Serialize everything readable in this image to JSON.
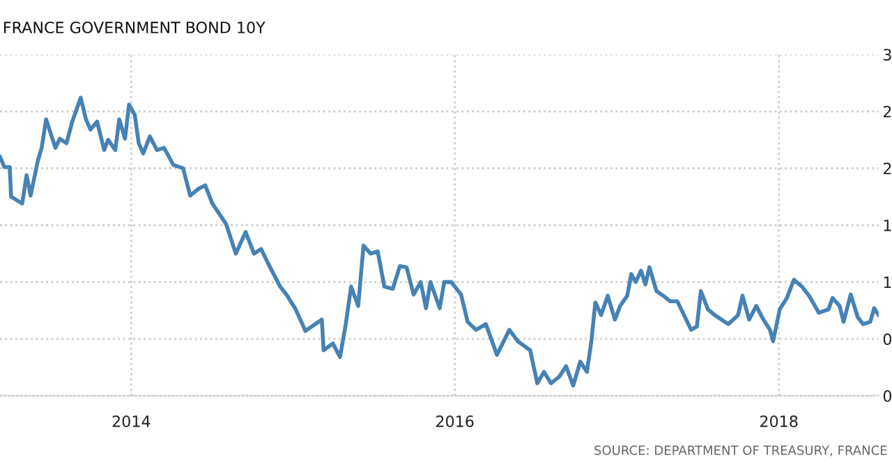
{
  "chart_data": {
    "type": "line",
    "title": "FRANCE GOVERNMENT BOND 10Y",
    "annotations": [
      "SOURCE: DEPARTMENT OF TREASURY, FRANCE"
    ],
    "x": [
      "2013-03-11",
      "2013-03-21",
      "2013-04-02",
      "2013-04-05",
      "2013-04-30",
      "2013-05-10",
      "2013-05-19",
      "2013-06-04",
      "2013-06-13",
      "2013-06-23",
      "2013-07-14",
      "2013-07-24",
      "2013-08-08",
      "2013-08-21",
      "2013-09-09",
      "2013-09-21",
      "2013-10-01",
      "2013-10-16",
      "2013-11-01",
      "2013-11-10",
      "2013-11-26",
      "2013-12-05",
      "2013-12-18",
      "2013-12-27",
      "2014-01-09",
      "2014-01-18",
      "2014-01-28",
      "2014-02-12",
      "2014-02-28",
      "2014-03-16",
      "2014-04-06",
      "2014-04-28",
      "2014-05-14",
      "2014-06-02",
      "2014-06-17",
      "2014-07-03",
      "2014-08-03",
      "2014-08-25",
      "2014-09-16",
      "2014-10-05",
      "2014-10-21",
      "2014-11-05",
      "2014-12-03",
      "2014-12-19",
      "2015-01-07",
      "2015-01-29",
      "2015-02-20",
      "2015-03-07",
      "2015-03-11",
      "2015-04-01",
      "2015-04-17",
      "2015-04-30",
      "2015-05-12",
      "2015-05-28",
      "2015-06-09",
      "2015-06-25",
      "2015-07-11",
      "2015-07-26",
      "2015-08-14",
      "2015-08-30",
      "2015-09-14",
      "2015-09-30",
      "2015-10-16",
      "2015-10-28",
      "2015-11-07",
      "2015-11-28",
      "2015-12-08",
      "2015-12-24",
      "2016-01-15",
      "2016-01-30",
      "2016-02-18",
      "2016-03-11",
      "2016-04-05",
      "2016-05-03",
      "2016-05-22",
      "2016-06-19",
      "2016-07-05",
      "2016-07-20",
      "2016-08-05",
      "2016-08-24",
      "2016-09-08",
      "2016-09-24",
      "2016-10-10",
      "2016-10-25",
      "2016-11-04",
      "2016-11-13",
      "2016-11-26",
      "2016-12-11",
      "2016-12-27",
      "2017-01-08",
      "2017-01-24",
      "2017-02-02",
      "2017-02-12",
      "2017-02-24",
      "2017-03-06",
      "2017-03-15",
      "2017-03-31",
      "2017-04-15",
      "2017-05-01",
      "2017-05-17",
      "2017-06-01",
      "2017-06-17",
      "2017-06-30",
      "2017-07-09",
      "2017-07-25",
      "2017-08-09",
      "2017-09-09",
      "2017-10-01",
      "2017-10-11",
      "2017-10-26",
      "2017-11-11",
      "2017-11-27",
      "2017-12-12",
      "2017-12-19",
      "2018-01-03",
      "2018-01-19",
      "2018-02-04",
      "2018-02-22",
      "2018-03-10",
      "2018-04-01",
      "2018-04-23",
      "2018-05-02",
      "2018-05-18",
      "2018-05-27",
      "2018-06-12",
      "2018-06-28",
      "2018-07-10",
      "2018-07-26",
      "2018-08-04",
      "2018-08-14"
    ],
    "series": [
      {
        "color": "#4682b4",
        "values": [
          2.1,
          2.01,
          2.01,
          1.75,
          1.69,
          1.94,
          1.76,
          2.06,
          2.18,
          2.43,
          2.18,
          2.26,
          2.22,
          2.41,
          2.62,
          2.43,
          2.34,
          2.41,
          2.16,
          2.25,
          2.16,
          2.43,
          2.26,
          2.56,
          2.47,
          2.22,
          2.13,
          2.28,
          2.16,
          2.18,
          2.03,
          2.0,
          1.76,
          1.82,
          1.85,
          1.69,
          1.51,
          1.25,
          1.44,
          1.25,
          1.29,
          1.17,
          0.96,
          0.88,
          0.76,
          0.57,
          0.63,
          0.67,
          0.4,
          0.46,
          0.34,
          0.63,
          0.96,
          0.79,
          1.32,
          1.25,
          1.27,
          0.96,
          0.94,
          1.14,
          1.13,
          0.89,
          1.0,
          0.77,
          1.0,
          0.77,
          1.0,
          1.0,
          0.89,
          0.65,
          0.58,
          0.63,
          0.36,
          0.58,
          0.48,
          0.4,
          0.11,
          0.21,
          0.11,
          0.17,
          0.26,
          0.09,
          0.3,
          0.21,
          0.48,
          0.82,
          0.71,
          0.88,
          0.67,
          0.79,
          0.88,
          1.07,
          1.0,
          1.1,
          0.98,
          1.13,
          0.92,
          0.88,
          0.83,
          0.83,
          0.71,
          0.58,
          0.61,
          0.92,
          0.76,
          0.71,
          0.63,
          0.71,
          0.88,
          0.67,
          0.79,
          0.67,
          0.58,
          0.48,
          0.76,
          0.86,
          1.02,
          0.96,
          0.88,
          0.73,
          0.76,
          0.86,
          0.79,
          0.65,
          0.89,
          0.69,
          0.63,
          0.65,
          0.77,
          0.71
        ]
      }
    ],
    "xlim": [
      "2013-03-11",
      "2018-08-14"
    ],
    "xticks": [
      {
        "value": "2014-01-01",
        "label": "2014"
      },
      {
        "value": "2016-01-01",
        "label": "2016"
      },
      {
        "value": "2018-01-01",
        "label": "2018"
      }
    ],
    "ylim": [
      0,
      3
    ],
    "yticks": [
      {
        "value": 0,
        "label": "0"
      },
      {
        "value": 0.5,
        "label": "0"
      },
      {
        "value": 1,
        "label": "1"
      },
      {
        "value": 1.5,
        "label": "1"
      },
      {
        "value": 2,
        "label": "2"
      },
      {
        "value": 2.5,
        "label": "2"
      },
      {
        "value": 3,
        "label": "3"
      }
    ],
    "grid": true,
    "line_style": "solid",
    "marker": "none"
  }
}
